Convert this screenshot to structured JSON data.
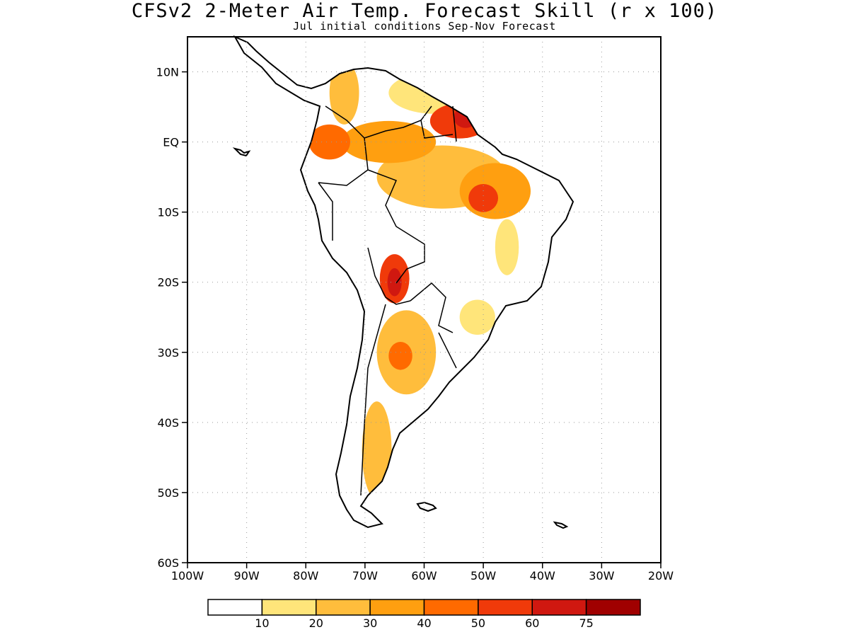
{
  "title": "CFSv2 2-Meter Air Temp. Forecast Skill (r x 100)",
  "subtitle": "Jul initial conditions  Sep-Nov Forecast",
  "map": {
    "projection": "lat-lon",
    "lon_range": [
      -100,
      -20
    ],
    "lat_range": [
      -60,
      15
    ],
    "lon_ticks": [
      {
        "value": -100,
        "label": "100W"
      },
      {
        "value": -90,
        "label": "90W"
      },
      {
        "value": -80,
        "label": "80W"
      },
      {
        "value": -70,
        "label": "70W"
      },
      {
        "value": -60,
        "label": "60W"
      },
      {
        "value": -50,
        "label": "50W"
      },
      {
        "value": -40,
        "label": "40W"
      },
      {
        "value": -30,
        "label": "30W"
      },
      {
        "value": -20,
        "label": "20W"
      }
    ],
    "lat_ticks": [
      {
        "value": 10,
        "label": "10N"
      },
      {
        "value": 0,
        "label": "EQ"
      },
      {
        "value": -10,
        "label": "10S"
      },
      {
        "value": -20,
        "label": "20S"
      },
      {
        "value": -30,
        "label": "30S"
      },
      {
        "value": -40,
        "label": "40S"
      },
      {
        "value": -50,
        "label": "50S"
      },
      {
        "value": -60,
        "label": "60S"
      }
    ],
    "grid": "dotted"
  },
  "colorbar": {
    "colors": [
      "#ffffff",
      "#ffe57a",
      "#ffbd3c",
      "#ff9f10",
      "#ff6a00",
      "#f03a0a",
      "#d01810",
      "#a00000"
    ],
    "labels": [
      "10",
      "20",
      "30",
      "40",
      "50",
      "60",
      "75"
    ]
  },
  "skill_regions": [
    {
      "name": "northern-venezuela-guiana",
      "center": [
        -58,
        7
      ],
      "r": [
        8,
        3
      ],
      "level": 1
    },
    {
      "name": "colombia-north",
      "center": [
        -73.5,
        7
      ],
      "r": [
        2.5,
        4.5
      ],
      "level": 2
    },
    {
      "name": "colombia-ecuador",
      "center": [
        -76,
        0
      ],
      "r": [
        3.5,
        2.5
      ],
      "level": 4
    },
    {
      "name": "western-amazon",
      "center": [
        -66,
        0
      ],
      "r": [
        8,
        3
      ],
      "level": 3
    },
    {
      "name": "central-amazon",
      "center": [
        -57,
        -5
      ],
      "r": [
        11,
        4.5
      ],
      "level": 2
    },
    {
      "name": "northeast-brazil",
      "center": [
        -48,
        -7
      ],
      "r": [
        6,
        4
      ],
      "level": 3
    },
    {
      "name": "para-core",
      "center": [
        -50,
        -8
      ],
      "r": [
        2.5,
        2
      ],
      "level": 5
    },
    {
      "name": "amapa-suriname",
      "center": [
        -54,
        3
      ],
      "r": [
        5,
        2.5
      ],
      "level": 5
    },
    {
      "name": "amapa-core",
      "center": [
        -53,
        3.5
      ],
      "r": [
        2,
        1.5
      ],
      "level": 6
    },
    {
      "name": "bolivia-chaco",
      "center": [
        -65,
        -19.5
      ],
      "r": [
        2.5,
        3.5
      ],
      "level": 5
    },
    {
      "name": "bolivia-core",
      "center": [
        -65,
        -20
      ],
      "r": [
        1.2,
        2
      ],
      "level": 6
    },
    {
      "name": "argentina-north",
      "center": [
        -63,
        -30
      ],
      "r": [
        5,
        6
      ],
      "level": 2
    },
    {
      "name": "argentina-core",
      "center": [
        -64,
        -30.5
      ],
      "r": [
        2,
        2
      ],
      "level": 4
    },
    {
      "name": "patagonia",
      "center": [
        -68,
        -44
      ],
      "r": [
        2.5,
        7
      ],
      "level": 2
    },
    {
      "name": "southern-brazil",
      "center": [
        -51,
        -25
      ],
      "r": [
        3,
        2.5
      ],
      "level": 1
    },
    {
      "name": "central-brazil",
      "center": [
        -46,
        -15
      ],
      "r": [
        2,
        4
      ],
      "level": 1
    }
  ]
}
